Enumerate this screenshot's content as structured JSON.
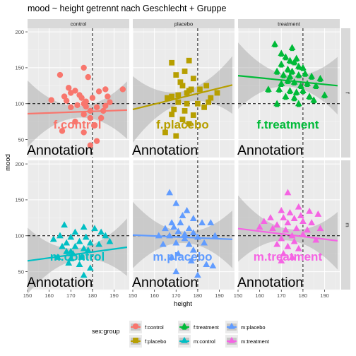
{
  "chart_data": {
    "type": "scatter",
    "title": "mood ~ height getrennt nach Geschlecht + Gruppe",
    "xlabel": "height",
    "ylabel": "mood",
    "xlim": [
      150,
      197
    ],
    "ylim": [
      25,
      205
    ],
    "x_ticks": [
      "150",
      "160",
      "170",
      "180",
      "190"
    ],
    "y_ticks": [
      "50",
      "100",
      "150",
      "200"
    ],
    "x_tick_values": [
      150,
      160,
      170,
      180,
      190
    ],
    "y_tick_values": [
      50,
      100,
      150,
      200
    ],
    "col_strips": [
      "control",
      "placebo",
      "treatment"
    ],
    "row_strips": [
      "f",
      "m"
    ],
    "reference_lines": {
      "x": 180,
      "y": 100
    },
    "grid": true,
    "legend_position": "bottom",
    "legend_title": "sex:group",
    "annotation": "Annotation",
    "series": [
      {
        "name": "f:control",
        "label": "f.control",
        "sex": "f",
        "group": "control",
        "color": "#F8766D",
        "shape": "circle",
        "points": [
          [
            165,
            140
          ],
          [
            169,
            122
          ],
          [
            176,
            150
          ],
          [
            178,
            137
          ],
          [
            194,
            120
          ],
          [
            161,
            105
          ],
          [
            167,
            110
          ],
          [
            170,
            115
          ],
          [
            172,
            118
          ],
          [
            174,
            112
          ],
          [
            180,
            108
          ],
          [
            183,
            117
          ],
          [
            186,
            120
          ],
          [
            176,
            100
          ],
          [
            179,
            90
          ],
          [
            182,
            95
          ],
          [
            176,
            85
          ],
          [
            179,
            80
          ],
          [
            185,
            90
          ],
          [
            172,
            75
          ],
          [
            176,
            60
          ],
          [
            181,
            70
          ],
          [
            170,
            95
          ],
          [
            173,
            98
          ],
          [
            177,
            96
          ],
          [
            186,
            97
          ],
          [
            188,
            102
          ],
          [
            179,
            42
          ],
          [
            182,
            48
          ],
          [
            166,
            62
          ],
          [
            168,
            104
          ],
          [
            175,
            108
          ],
          [
            184,
            80
          ],
          [
            187,
            110
          ],
          [
            177,
            103
          ]
        ],
        "fit": {
          "x": [
            150,
            196
          ],
          "y": [
            86,
            91
          ]
        }
      },
      {
        "name": "f:placebo",
        "label": "f.placebo",
        "sex": "f",
        "group": "placebo",
        "color": "#B79F00",
        "shape": "square",
        "points": [
          [
            168,
            157
          ],
          [
            176,
            160
          ],
          [
            170,
            140
          ],
          [
            174,
            145
          ],
          [
            178,
            135
          ],
          [
            172,
            130
          ],
          [
            184,
            125
          ],
          [
            189,
            115
          ],
          [
            181,
            120
          ],
          [
            177,
            120
          ],
          [
            175,
            115
          ],
          [
            171,
            112
          ],
          [
            168,
            110
          ],
          [
            166,
            108
          ],
          [
            171,
            102
          ],
          [
            175,
            100
          ],
          [
            180,
            100
          ],
          [
            185,
            102
          ],
          [
            169,
            92
          ],
          [
            174,
            90
          ],
          [
            178,
            84
          ],
          [
            173,
            78
          ],
          [
            176,
            72
          ],
          [
            165,
            60
          ],
          [
            170,
            55
          ],
          [
            168,
            85
          ],
          [
            183,
            95
          ],
          [
            186,
            108
          ],
          [
            173,
            125
          ],
          [
            176,
            118
          ]
        ],
        "fit": {
          "x": [
            150,
            196
          ],
          "y": [
            92,
            126
          ]
        }
      },
      {
        "name": "f:treatment",
        "label": "f.treatment",
        "sex": "f",
        "group": "treatment",
        "color": "#00BA38",
        "shape": "triangle",
        "points": [
          [
            167,
            183
          ],
          [
            175,
            178
          ],
          [
            170,
            170
          ],
          [
            172,
            165
          ],
          [
            174,
            160
          ],
          [
            176,
            158
          ],
          [
            178,
            152
          ],
          [
            180,
            150
          ],
          [
            173,
            148
          ],
          [
            168,
            145
          ],
          [
            175,
            145
          ],
          [
            171,
            140
          ],
          [
            178,
            140
          ],
          [
            184,
            138
          ],
          [
            188,
            135
          ],
          [
            173,
            132
          ],
          [
            176,
            130
          ],
          [
            170,
            128
          ],
          [
            182,
            128
          ],
          [
            186,
            125
          ],
          [
            164,
            120
          ],
          [
            169,
            120
          ],
          [
            174,
            118
          ],
          [
            177,
            116
          ],
          [
            180,
            118
          ],
          [
            172,
            110
          ],
          [
            176,
            108
          ],
          [
            183,
            110
          ],
          [
            178,
            100
          ],
          [
            185,
            105
          ],
          [
            168,
            100
          ],
          [
            190,
            112
          ],
          [
            179,
            125
          ],
          [
            174,
            138
          ],
          [
            181,
            142
          ],
          [
            170,
            155
          ],
          [
            177,
            163
          ]
        ],
        "fit": {
          "x": [
            150,
            196
          ],
          "y": [
            139,
            125
          ]
        }
      },
      {
        "name": "m:control",
        "label": "m.control",
        "sex": "m",
        "group": "control",
        "color": "#00BFC4",
        "shape": "triangle-filled",
        "points": [
          [
            167,
            115
          ],
          [
            176,
            112
          ],
          [
            181,
            110
          ],
          [
            172,
            105
          ],
          [
            184,
            105
          ],
          [
            165,
            100
          ],
          [
            170,
            98
          ],
          [
            177,
            98
          ],
          [
            186,
            100
          ],
          [
            162,
            95
          ],
          [
            168,
            90
          ],
          [
            174,
            92
          ],
          [
            179,
            90
          ],
          [
            172,
            85
          ],
          [
            176,
            82
          ],
          [
            168,
            78
          ],
          [
            171,
            75
          ],
          [
            164,
            70
          ],
          [
            170,
            68
          ],
          [
            175,
            70
          ],
          [
            169,
            62
          ],
          [
            174,
            60
          ],
          [
            179,
            55
          ],
          [
            176,
            45
          ],
          [
            170,
            78
          ],
          [
            166,
            85
          ],
          [
            183,
            88
          ],
          [
            188,
            92
          ],
          [
            178,
            80
          ]
        ],
        "fit": {
          "x": [
            150,
            196
          ],
          "y": [
            65,
            84
          ]
        }
      },
      {
        "name": "m:placebo",
        "label": "m.placebo",
        "sex": "m",
        "group": "placebo",
        "color": "#619CFF",
        "shape": "triangle-filled",
        "points": [
          [
            167,
            160
          ],
          [
            170,
            145
          ],
          [
            175,
            135
          ],
          [
            173,
            128
          ],
          [
            178,
            124
          ],
          [
            168,
            118
          ],
          [
            172,
            118
          ],
          [
            182,
            118
          ],
          [
            186,
            118
          ],
          [
            165,
            110
          ],
          [
            169,
            112
          ],
          [
            176,
            110
          ],
          [
            171,
            106
          ],
          [
            174,
            102
          ],
          [
            178,
            104
          ],
          [
            162,
            100
          ],
          [
            167,
            100
          ],
          [
            174,
            96
          ],
          [
            180,
            98
          ],
          [
            188,
            100
          ],
          [
            170,
            90
          ],
          [
            176,
            88
          ],
          [
            183,
            90
          ],
          [
            178,
            80
          ],
          [
            171,
            75
          ],
          [
            168,
            70
          ],
          [
            177,
            65
          ],
          [
            184,
            60
          ],
          [
            170,
            50
          ],
          [
            180,
            45
          ],
          [
            187,
            58
          ],
          [
            164,
            88
          ]
        ],
        "fit": {
          "x": [
            150,
            196
          ],
          "y": [
            101,
            95
          ]
        }
      },
      {
        "name": "m:treatment",
        "label": "m.treatment",
        "sex": "m",
        "group": "treatment",
        "color": "#F564E3",
        "shape": "triangle-filled",
        "points": [
          [
            173,
            160
          ],
          [
            178,
            140
          ],
          [
            170,
            135
          ],
          [
            183,
            134
          ],
          [
            187,
            130
          ],
          [
            165,
            125
          ],
          [
            171,
            125
          ],
          [
            176,
            124
          ],
          [
            180,
            120
          ],
          [
            168,
            115
          ],
          [
            173,
            118
          ],
          [
            184,
            118
          ],
          [
            160,
            112
          ],
          [
            166,
            110
          ],
          [
            172,
            108
          ],
          [
            177,
            110
          ],
          [
            182,
            108
          ],
          [
            175,
            100
          ],
          [
            180,
            102
          ],
          [
            170,
            96
          ],
          [
            176,
            92
          ],
          [
            186,
            94
          ],
          [
            168,
            88
          ],
          [
            173,
            85
          ],
          [
            178,
            82
          ],
          [
            171,
            75
          ],
          [
            175,
            70
          ],
          [
            170,
            65
          ],
          [
            162,
            120
          ],
          [
            188,
            110
          ],
          [
            179,
            128
          ],
          [
            174,
            132
          ]
        ],
        "fit": {
          "x": [
            150,
            196
          ],
          "y": [
            110,
            93
          ]
        }
      }
    ]
  }
}
